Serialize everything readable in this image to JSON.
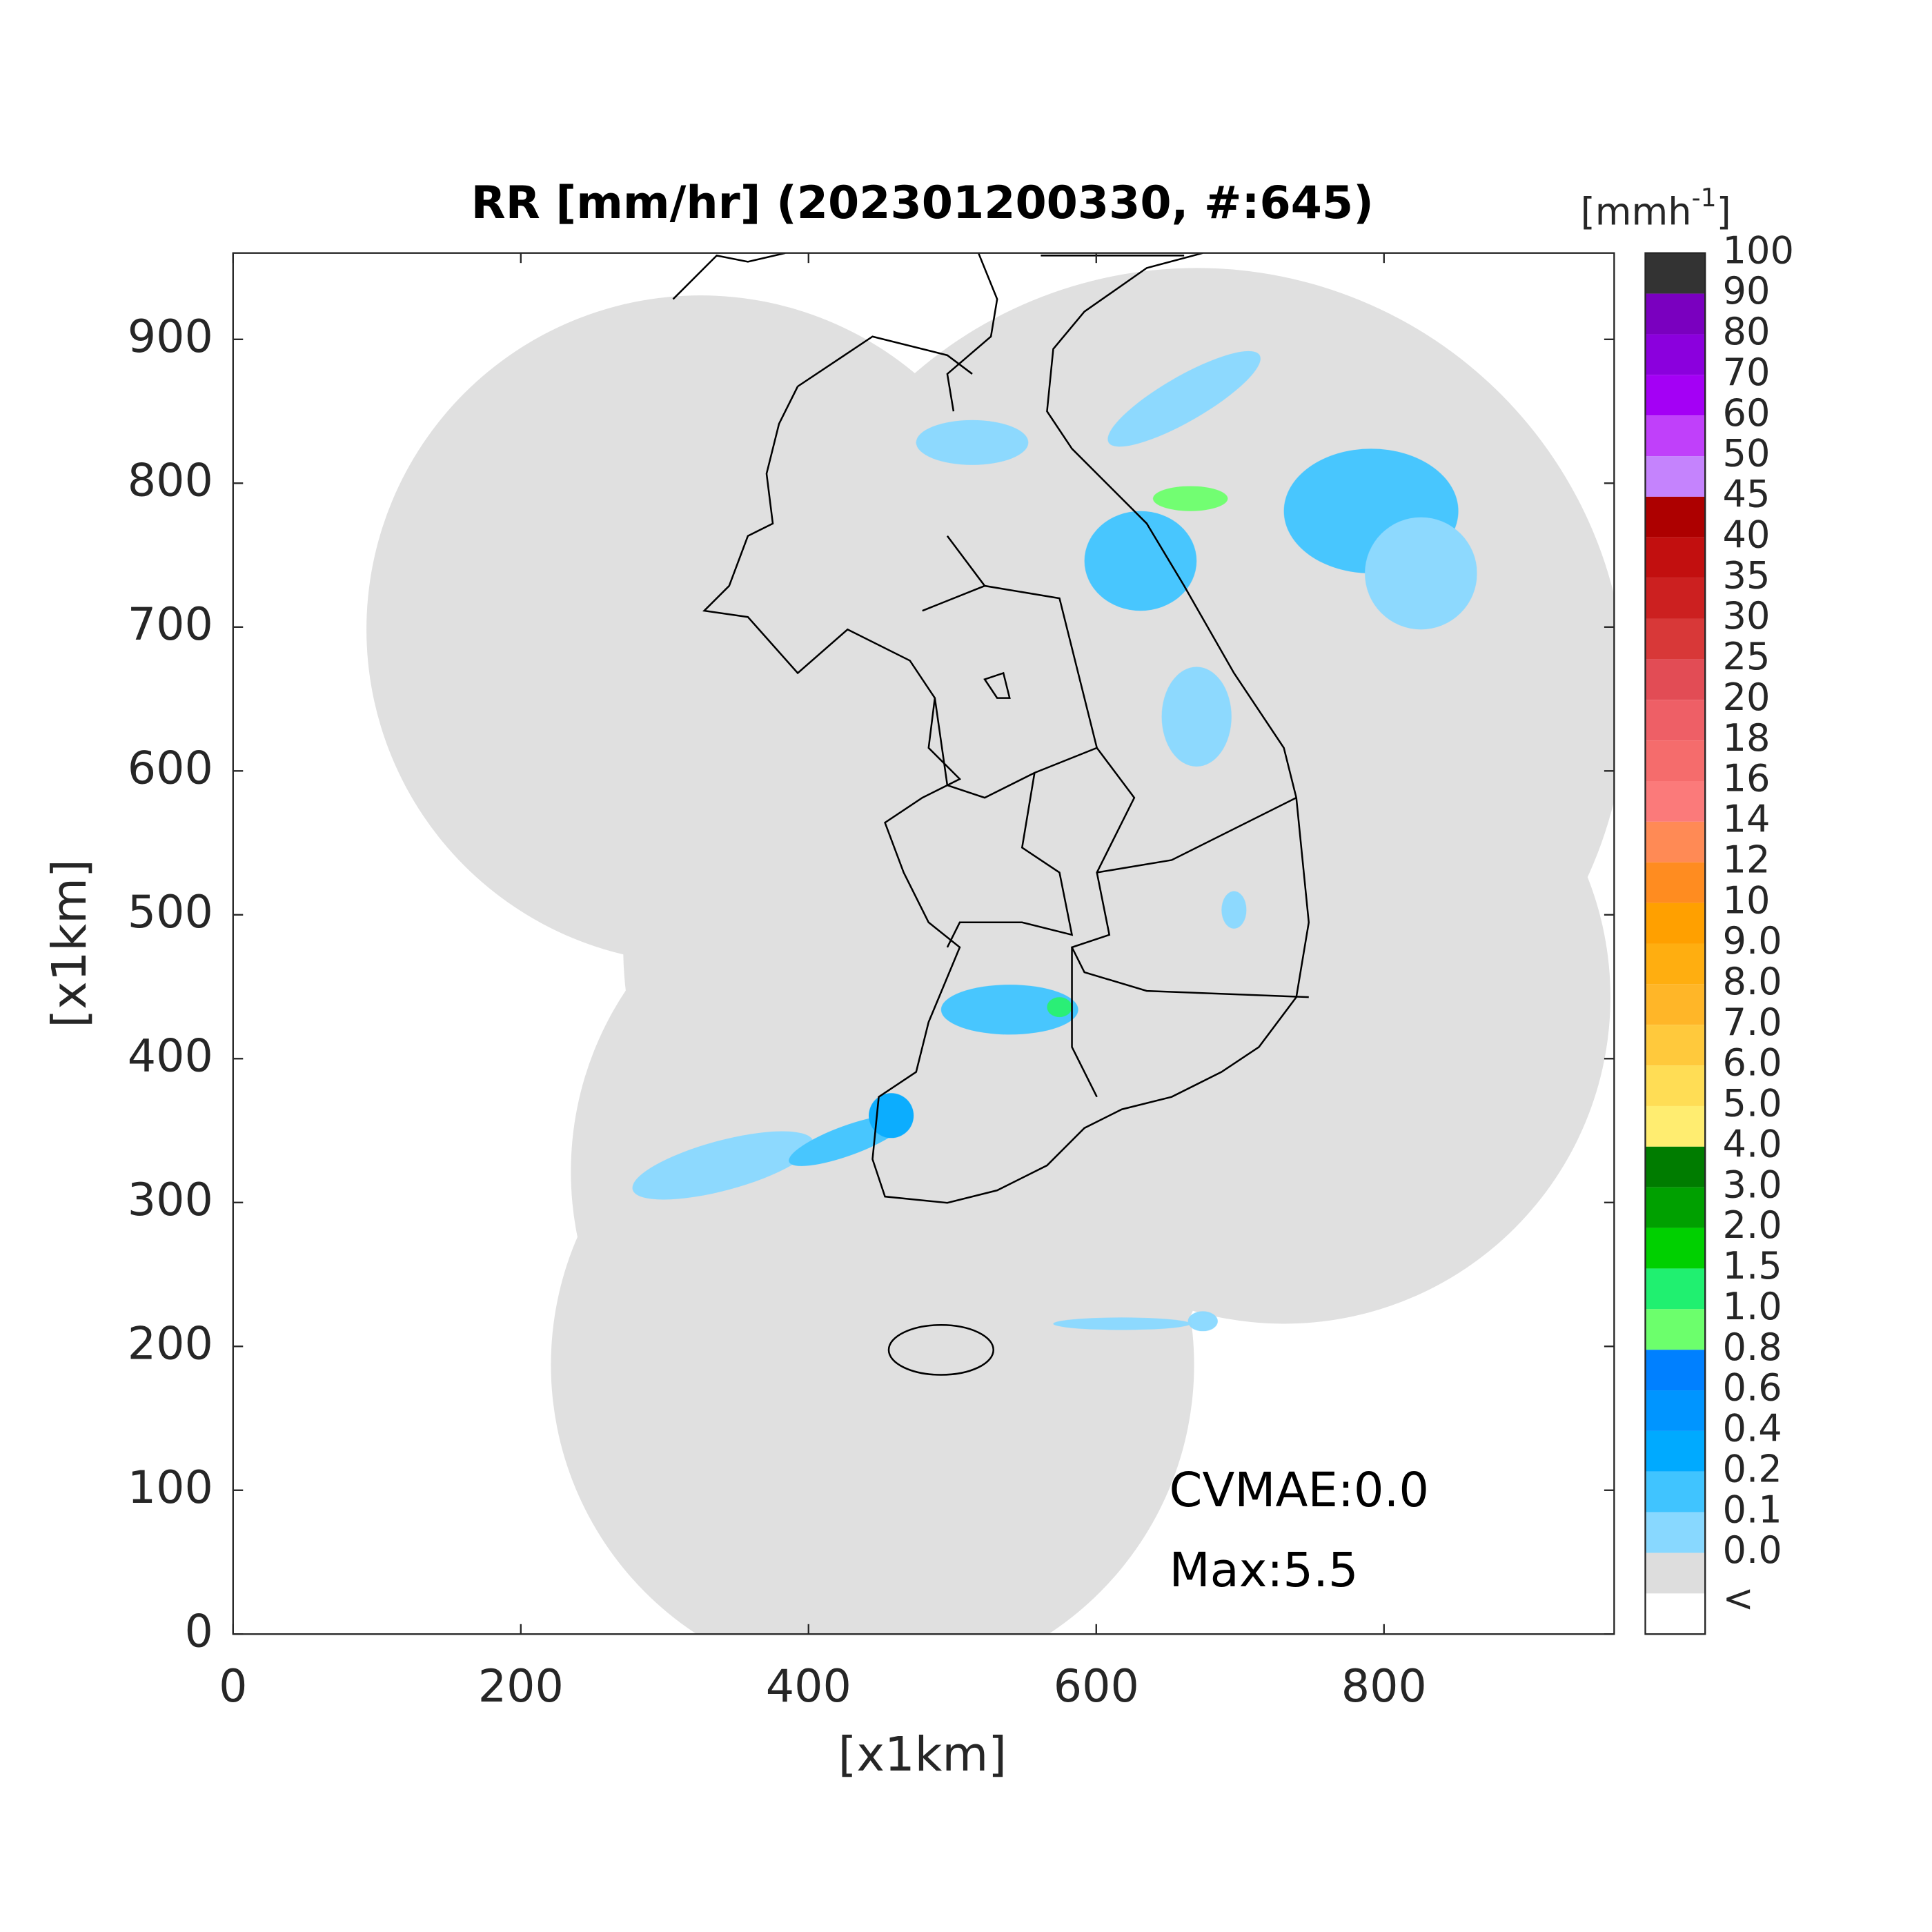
{
  "chart_data": {
    "type": "map",
    "title": "RR [mm/hr] (202301200330, #:645)",
    "xlabel": "[x1km]",
    "ylabel": "[x1km]",
    "xlim": [
      0,
      960
    ],
    "ylim": [
      0,
      960
    ],
    "xticks": [
      0,
      200,
      400,
      600,
      800
    ],
    "yticks": [
      0,
      100,
      200,
      300,
      400,
      500,
      600,
      700,
      800,
      900
    ],
    "annotations": [
      "CVMAE:0.0",
      "Max:5.5"
    ],
    "colorbar": {
      "unit": [
        "[mmh",
        "-1",
        "]"
      ],
      "labels": [
        "100",
        "90",
        "80",
        "70",
        "60",
        "50",
        "45",
        "40",
        "35",
        "30",
        "25",
        "20",
        "18",
        "16",
        "14",
        "12",
        "10",
        "9.0",
        "8.0",
        "7.0",
        "6.0",
        "5.0",
        "4.0",
        "3.0",
        "2.0",
        "1.5",
        "1.0",
        "0.8",
        "0.6",
        "0.4",
        "0.2",
        "0.1",
        "0.0",
        "<"
      ],
      "colors": [
        "#333333",
        "#7a00bf",
        "#8b00dd",
        "#a400f5",
        "#c040fa",
        "#c583fd",
        "#ad0000",
        "#c20f0f",
        "#cc2020",
        "#d83838",
        "#e24c55",
        "#ee5f66",
        "#f56c6c",
        "#fb7a7a",
        "#ff8a55",
        "#ff8c20",
        "#ffa000",
        "#ffae10",
        "#ffb628",
        "#ffc93c",
        "#ffdd55",
        "#ffed70",
        "#007c00",
        "#00a000",
        "#00d000",
        "#20f070",
        "#6cff6c",
        "#0080ff",
        "#0095ff",
        "#00aaff",
        "#40c4ff",
        "#88d8ff",
        "#dddddd",
        "#ffffff"
      ]
    }
  }
}
